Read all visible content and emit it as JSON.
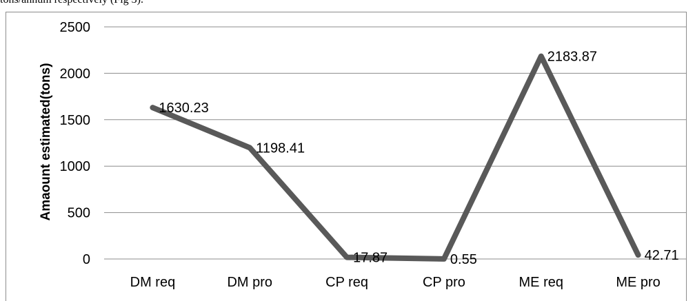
{
  "document": {
    "preceding_text": "tons/annum respectively (Fig 3)."
  },
  "chart_data": {
    "type": "line",
    "categories": [
      "DM req",
      "DM pro",
      "CP req",
      "CP pro",
      "ME req",
      "ME pro"
    ],
    "series": [
      {
        "values": [
          1630.23,
          1198.41,
          17.87,
          0.55,
          2183.87,
          42.71
        ]
      }
    ],
    "data_labels": [
      "1630.23",
      "1198.41",
      "17.87",
      "0.55",
      "2183.87",
      "42.71"
    ],
    "title": "",
    "xlabel": "",
    "ylabel": "Amaount estimated(tons)",
    "ylim": [
      0,
      2500
    ],
    "yticks": [
      0,
      500,
      1000,
      1500,
      2000,
      2500
    ],
    "grid": true,
    "legend": "none",
    "line_color": "#595959",
    "grid_color": "#8c8c8c"
  }
}
